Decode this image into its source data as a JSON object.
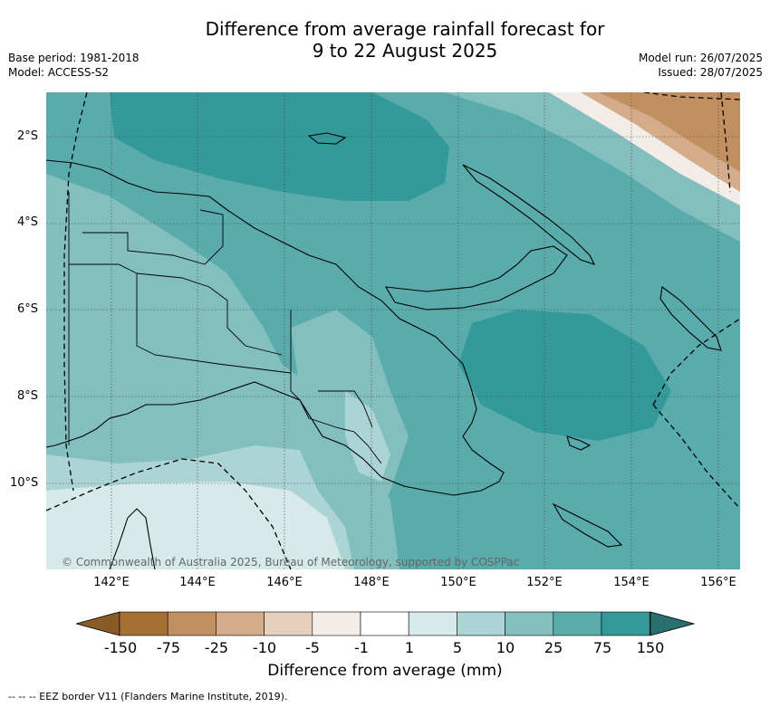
{
  "title_line1": "Difference from average rainfall forecast for",
  "title_line2": "9 to 22 August 2025",
  "base_period": "Base period: 1981-2018",
  "model": "Model: ACCESS-S2",
  "model_run": "Model run: 26/07/2025",
  "issued": "Issued: 28/07/2025",
  "lat_labels": [
    "2°S",
    "4°S",
    "6°S",
    "8°S",
    "10°S"
  ],
  "lon_labels": [
    "142°E",
    "144°E",
    "146°E",
    "148°E",
    "150°E",
    "152°E",
    "154°E",
    "156°E"
  ],
  "copyright": "© Commonwealth of Australia 2025, Bureau of Meteorology, supported by COSPPac",
  "colorbar": {
    "title": "Difference from average (mm)",
    "tick_labels": [
      "-150",
      "-75",
      "-25",
      "-10",
      "-5",
      "-1",
      "1",
      "5",
      "10",
      "25",
      "75",
      "150"
    ],
    "colors": [
      "#a67035",
      "#c29060",
      "#d4ac8a",
      "#e6cfbb",
      "#f2ede8",
      "#ffffff",
      "#d6eaea",
      "#acd4d4",
      "#84bfbf",
      "#5aabab",
      "#339a99",
      "#2a7a7a"
    ]
  },
  "eez_note": "--  --  -- EEZ border V11 (Flanders Marine Institute, 2019)."
}
